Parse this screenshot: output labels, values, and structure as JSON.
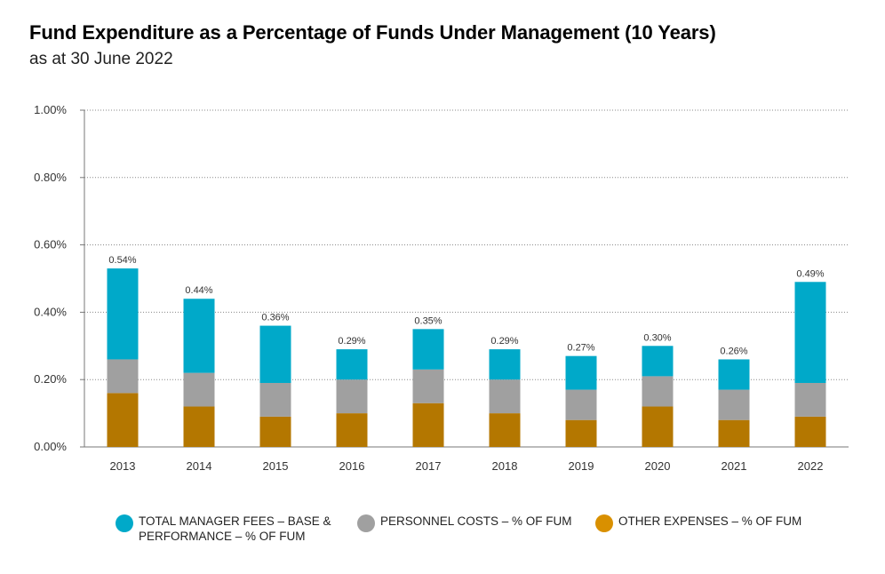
{
  "title": "Fund Expenditure as a Percentage of Funds Under Management (10 Years)",
  "subtitle": "as at 30 June 2022",
  "colors": {
    "manager_fees": "#00a9c9",
    "personnel": "#a0a0a0",
    "other": "#b47700",
    "other_legend": "#d99000",
    "grid": "#888888"
  },
  "chart_data": {
    "type": "bar",
    "stacked": true,
    "categories": [
      "2013",
      "2014",
      "2015",
      "2016",
      "2017",
      "2018",
      "2019",
      "2020",
      "2021",
      "2022"
    ],
    "series": [
      {
        "name": "OTHER EXPENSES – % OF FUM",
        "values": [
          0.16,
          0.12,
          0.09,
          0.1,
          0.13,
          0.1,
          0.08,
          0.12,
          0.08,
          0.09
        ]
      },
      {
        "name": "PERSONNEL COSTS – % OF FUM",
        "values": [
          0.1,
          0.1,
          0.1,
          0.1,
          0.1,
          0.1,
          0.09,
          0.09,
          0.09,
          0.1
        ]
      },
      {
        "name": "TOTAL MANAGER FEES – BASE & PERFORMANCE – % OF FUM",
        "values": [
          0.27,
          0.22,
          0.17,
          0.09,
          0.12,
          0.09,
          0.1,
          0.09,
          0.09,
          0.3
        ]
      }
    ],
    "total_labels": [
      "0.54%",
      "0.44%",
      "0.36%",
      "0.29%",
      "0.35%",
      "0.29%",
      "0.27%",
      "0.30%",
      "0.26%",
      "0.49%"
    ],
    "ylim": [
      0,
      1.0
    ],
    "yticks": [
      {
        "value": 0.0,
        "label": "0.00%"
      },
      {
        "value": 0.2,
        "label": "0.20%"
      },
      {
        "value": 0.4,
        "label": "0.40%"
      },
      {
        "value": 0.6,
        "label": "0.60%"
      },
      {
        "value": 0.8,
        "label": "0.80%"
      },
      {
        "value": 1.0,
        "label": "1.00%"
      }
    ],
    "grid": "horizontal-dotted",
    "legend_position": "bottom"
  },
  "legend": [
    {
      "line1": "TOTAL MANAGER FEES – BASE &",
      "line2": "PERFORMANCE – % OF FUM"
    },
    {
      "line1": "PERSONNEL COSTS – % OF FUM",
      "line2": ""
    },
    {
      "line1": "OTHER EXPENSES – % OF FUM",
      "line2": ""
    }
  ]
}
